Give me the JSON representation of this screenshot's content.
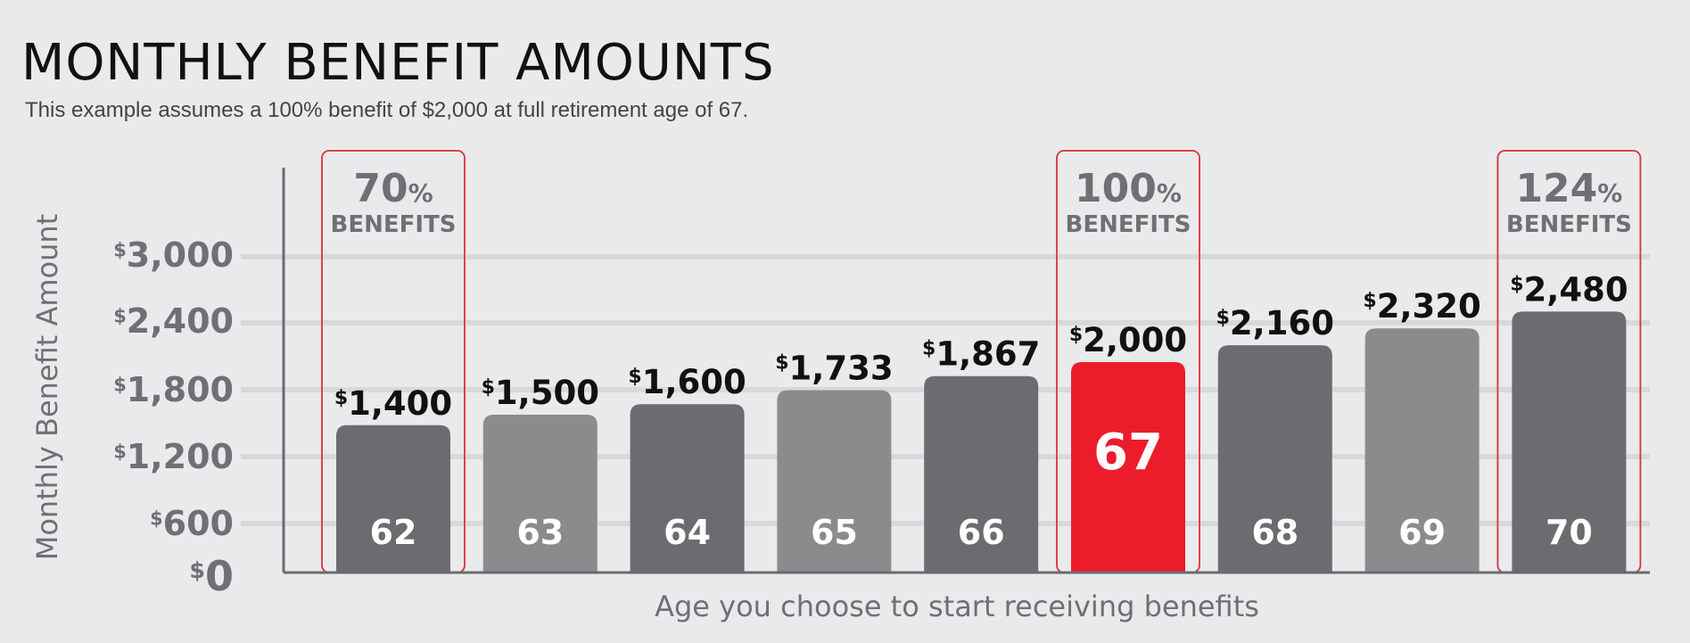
{
  "title": "MONTHLY BENEFIT AMOUNTS",
  "subtitle": "This example assumes a 100% benefit of $2,000 at full retirement age of 67.",
  "chart_data": {
    "type": "bar",
    "title": "MONTHLY BENEFIT AMOUNTS",
    "subtitle": "This example assumes a 100% benefit of $2,000 at full retirement age of 67.",
    "xlabel": "Age you choose to start receiving benefits",
    "ylabel": "Monthly Benefit Amount",
    "categories": [
      "62",
      "63",
      "64",
      "65",
      "66",
      "67",
      "68",
      "69",
      "70"
    ],
    "values": [
      1400,
      1500,
      1600,
      1733,
      1867,
      2000,
      2160,
      2320,
      2480
    ],
    "value_labels": [
      "1,400",
      "1,500",
      "1,600",
      "1,733",
      "1,867",
      "2,000",
      "2,160",
      "2,320",
      "2,480"
    ],
    "currency_symbol": "$",
    "ylim": [
      0,
      3000
    ],
    "yticks": [
      0,
      600,
      1200,
      1800,
      2400,
      3000
    ],
    "ytick_labels": [
      "0",
      "600",
      "1,200",
      "1,800",
      "2,400",
      "3,000"
    ],
    "grid": true,
    "highlight_category": "67",
    "callouts": [
      {
        "category": "62",
        "percent": "70",
        "percent_sign": "%",
        "label": "BENEFITS"
      },
      {
        "category": "67",
        "percent": "100",
        "percent_sign": "%",
        "label": "BENEFITS"
      },
      {
        "category": "70",
        "percent": "124",
        "percent_sign": "%",
        "label": "BENEFITS"
      }
    ],
    "colors": {
      "dark": "#6b6c6f",
      "light": "#8a8b8d",
      "highlight": "#ec1c2b",
      "callout_border": "#e0303a",
      "grid": "#d8d9da",
      "axis": "#6a6b6e",
      "value_text": "#111111",
      "tick_text": "#6f7073",
      "bar_label": "#ffffff"
    }
  }
}
